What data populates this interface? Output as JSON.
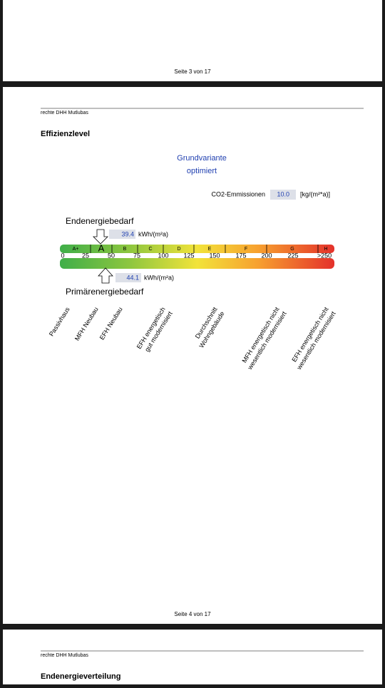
{
  "pages": [
    {
      "footer": "Seite 3 von 17"
    },
    {
      "header": "rechte DHH Mutlubas",
      "heading": "Effizienzlevel",
      "variant": [
        "Grundvariante",
        "optimiert"
      ],
      "co2": {
        "label": "CO2-Emmissionen",
        "value": "10.0",
        "unit": "[kg/(m²*a)]"
      },
      "end_energy": {
        "title": "Endenergiebedarf",
        "value": "39.4",
        "unit": "kWh/(m²a)"
      },
      "primary_energy": {
        "title": "Primärenergiebedarf",
        "value": "44.1",
        "unit": "kWh/(m²a)"
      },
      "classes": [
        "A+",
        "A",
        "B",
        "C",
        "D",
        "E",
        "F",
        "G",
        "H"
      ],
      "scale": [
        "0",
        "25",
        "50",
        "75",
        "100",
        "125",
        "150",
        "175",
        "200",
        "225",
        ">250"
      ],
      "references": [
        [
          "Passivhaus"
        ],
        [
          "MFH Neubau"
        ],
        [
          "EFH Neubau"
        ],
        [
          "EFH energetisch",
          "gut modernisiert"
        ],
        [
          "Durchschnitt",
          "Wohngebäude"
        ],
        [
          "MFH energetisch nicht",
          "wesentlich modernisiert"
        ],
        [
          "EFH energetisch nicht",
          "wesentlich modernisiert"
        ]
      ],
      "footer": "Seite 4 von 17"
    },
    {
      "header": "rechte DHH Mutlubas",
      "heading": "Endenergieverteilung"
    }
  ]
}
